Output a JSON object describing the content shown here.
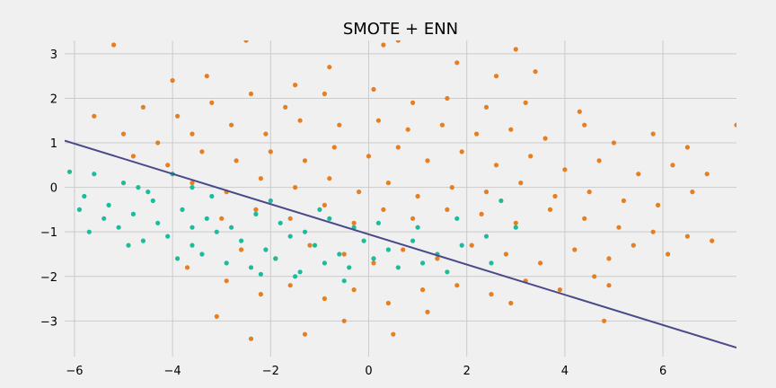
{
  "chart_data": {
    "type": "scatter",
    "title": "SMOTE + ENN",
    "xlabel": "",
    "ylabel": "",
    "xlim": [
      -6.2,
      7.5
    ],
    "ylim": [
      -3.8,
      3.3
    ],
    "x_ticks": [
      -6,
      -4,
      -2,
      0,
      2,
      4,
      6
    ],
    "y_ticks": [
      -3,
      -2,
      -1,
      0,
      1,
      2,
      3
    ],
    "x_tick_labels": [
      "−6",
      "−4",
      "−2",
      "0",
      "2",
      "4",
      "6"
    ],
    "y_tick_labels": [
      "−3",
      "−2",
      "−1",
      "0",
      "1",
      "2",
      "3"
    ],
    "grid": true,
    "legend": "none",
    "background": "#f0f0f0",
    "series": [
      {
        "color": "#e67e22",
        "points": [
          [
            -5.2,
            3.2
          ],
          [
            -3.3,
            2.5
          ],
          [
            -2.5,
            3.3
          ],
          [
            0.3,
            3.2
          ],
          [
            0.6,
            3.3
          ],
          [
            3.0,
            3.1
          ],
          [
            -4.0,
            2.4
          ],
          [
            -1.5,
            2.3
          ],
          [
            -0.8,
            2.7
          ],
          [
            1.8,
            2.8
          ],
          [
            2.6,
            2.5
          ],
          [
            3.4,
            2.6
          ],
          [
            -4.6,
            1.8
          ],
          [
            -3.9,
            1.6
          ],
          [
            -3.2,
            1.9
          ],
          [
            -2.4,
            2.1
          ],
          [
            -1.7,
            1.8
          ],
          [
            -0.9,
            2.1
          ],
          [
            0.1,
            2.2
          ],
          [
            0.9,
            1.9
          ],
          [
            1.6,
            2.0
          ],
          [
            2.4,
            1.8
          ],
          [
            3.2,
            1.9
          ],
          [
            4.3,
            1.7
          ],
          [
            -5.6,
            1.6
          ],
          [
            -5.0,
            1.2
          ],
          [
            -4.3,
            1.0
          ],
          [
            -3.6,
            1.2
          ],
          [
            -2.8,
            1.4
          ],
          [
            -2.1,
            1.2
          ],
          [
            -1.4,
            1.5
          ],
          [
            -0.6,
            1.4
          ],
          [
            0.2,
            1.5
          ],
          [
            0.8,
            1.3
          ],
          [
            1.5,
            1.4
          ],
          [
            2.2,
            1.2
          ],
          [
            2.9,
            1.3
          ],
          [
            3.6,
            1.1
          ],
          [
            4.4,
            1.4
          ],
          [
            5.0,
            1.0
          ],
          [
            5.8,
            1.2
          ],
          [
            6.5,
            0.9
          ],
          [
            -4.8,
            0.7
          ],
          [
            -4.1,
            0.5
          ],
          [
            -3.4,
            0.8
          ],
          [
            -2.7,
            0.6
          ],
          [
            -2.0,
            0.8
          ],
          [
            -1.3,
            0.6
          ],
          [
            -0.7,
            0.9
          ],
          [
            0.0,
            0.7
          ],
          [
            0.6,
            0.9
          ],
          [
            1.2,
            0.6
          ],
          [
            1.9,
            0.8
          ],
          [
            2.6,
            0.5
          ],
          [
            3.3,
            0.7
          ],
          [
            4.0,
            0.4
          ],
          [
            4.7,
            0.6
          ],
          [
            5.5,
            0.3
          ],
          [
            6.2,
            0.5
          ],
          [
            6.9,
            0.3
          ],
          [
            -3.6,
            0.1
          ],
          [
            -2.9,
            -0.1
          ],
          [
            -2.2,
            0.2
          ],
          [
            -1.5,
            0.0
          ],
          [
            -0.8,
            0.2
          ],
          [
            -0.2,
            -0.1
          ],
          [
            0.4,
            0.1
          ],
          [
            1.0,
            -0.2
          ],
          [
            1.7,
            0.0
          ],
          [
            2.4,
            -0.1
          ],
          [
            3.1,
            0.1
          ],
          [
            3.8,
            -0.2
          ],
          [
            4.5,
            -0.1
          ],
          [
            5.2,
            -0.3
          ],
          [
            5.9,
            -0.4
          ],
          [
            6.6,
            -0.1
          ],
          [
            7.5,
            1.4
          ],
          [
            -3.0,
            -0.7
          ],
          [
            -2.3,
            -0.5
          ],
          [
            -1.6,
            -0.7
          ],
          [
            -0.9,
            -0.4
          ],
          [
            -0.3,
            -0.8
          ],
          [
            0.3,
            -0.5
          ],
          [
            0.9,
            -0.7
          ],
          [
            1.6,
            -0.5
          ],
          [
            2.3,
            -0.6
          ],
          [
            3.0,
            -0.8
          ],
          [
            3.7,
            -0.5
          ],
          [
            4.4,
            -0.7
          ],
          [
            5.1,
            -0.9
          ],
          [
            5.8,
            -1.0
          ],
          [
            6.5,
            -1.1
          ],
          [
            7.0,
            -1.2
          ],
          [
            -2.6,
            -1.4
          ],
          [
            -1.9,
            -1.6
          ],
          [
            -1.2,
            -1.3
          ],
          [
            -0.5,
            -1.5
          ],
          [
            0.1,
            -1.7
          ],
          [
            0.7,
            -1.4
          ],
          [
            1.4,
            -1.6
          ],
          [
            2.1,
            -1.3
          ],
          [
            2.8,
            -1.5
          ],
          [
            3.5,
            -1.7
          ],
          [
            4.2,
            -1.4
          ],
          [
            4.9,
            -1.6
          ],
          [
            5.4,
            -1.3
          ],
          [
            6.1,
            -1.5
          ],
          [
            -3.7,
            -1.8
          ],
          [
            -2.9,
            -2.1
          ],
          [
            -2.2,
            -2.4
          ],
          [
            -1.6,
            -2.2
          ],
          [
            -0.9,
            -2.5
          ],
          [
            -0.3,
            -2.3
          ],
          [
            0.4,
            -2.6
          ],
          [
            1.1,
            -2.3
          ],
          [
            1.8,
            -2.2
          ],
          [
            2.5,
            -2.4
          ],
          [
            3.2,
            -2.1
          ],
          [
            3.9,
            -2.3
          ],
          [
            4.6,
            -2.0
          ],
          [
            4.9,
            -2.2
          ],
          [
            -3.1,
            -2.9
          ],
          [
            -2.4,
            -3.4
          ],
          [
            -1.3,
            -3.3
          ],
          [
            -0.5,
            -3.0
          ],
          [
            0.5,
            -3.3
          ],
          [
            1.2,
            -2.8
          ],
          [
            2.9,
            -2.6
          ],
          [
            4.8,
            -3.0
          ]
        ]
      },
      {
        "color": "#1abc9c",
        "points": [
          [
            -6.1,
            0.35
          ],
          [
            -5.6,
            0.3
          ],
          [
            -5.0,
            0.1
          ],
          [
            -4.5,
            -0.1
          ],
          [
            -4.0,
            0.3
          ],
          [
            -3.6,
            0.0
          ],
          [
            -5.8,
            -0.2
          ],
          [
            -5.3,
            -0.4
          ],
          [
            -4.8,
            -0.6
          ],
          [
            -4.3,
            -0.8
          ],
          [
            -3.8,
            -0.5
          ],
          [
            -3.3,
            -0.7
          ],
          [
            -2.8,
            -0.9
          ],
          [
            -2.3,
            -0.6
          ],
          [
            -1.8,
            -0.8
          ],
          [
            -1.3,
            -1.0
          ],
          [
            -0.8,
            -0.7
          ],
          [
            -0.3,
            -0.9
          ],
          [
            -5.7,
            -1.0
          ],
          [
            -5.1,
            -0.9
          ],
          [
            -4.6,
            -1.2
          ],
          [
            -4.1,
            -1.1
          ],
          [
            -3.6,
            -1.3
          ],
          [
            -3.1,
            -1.0
          ],
          [
            -2.6,
            -1.2
          ],
          [
            -2.1,
            -1.4
          ],
          [
            -1.6,
            -1.1
          ],
          [
            -1.1,
            -1.3
          ],
          [
            -0.6,
            -1.5
          ],
          [
            -0.1,
            -1.2
          ],
          [
            0.4,
            -1.4
          ],
          [
            0.9,
            -1.2
          ],
          [
            1.4,
            -1.5
          ],
          [
            1.9,
            -1.3
          ],
          [
            2.4,
            -1.1
          ],
          [
            -3.9,
            -1.6
          ],
          [
            -3.4,
            -1.5
          ],
          [
            -2.9,
            -1.7
          ],
          [
            -2.4,
            -1.8
          ],
          [
            -1.9,
            -1.6
          ],
          [
            -1.4,
            -1.9
          ],
          [
            -0.9,
            -1.7
          ],
          [
            -0.4,
            -1.8
          ],
          [
            0.1,
            -1.6
          ],
          [
            0.6,
            -1.8
          ],
          [
            1.1,
            -1.7
          ],
          [
            1.6,
            -1.9
          ],
          [
            -4.9,
            -1.3
          ],
          [
            -4.4,
            -0.3
          ],
          [
            -3.2,
            -0.2
          ],
          [
            -2.0,
            -0.3
          ],
          [
            -1.0,
            -0.5
          ],
          [
            0.2,
            -0.8
          ],
          [
            1.0,
            -0.9
          ],
          [
            1.8,
            -0.7
          ],
          [
            2.7,
            -0.3
          ],
          [
            3.0,
            -0.9
          ],
          [
            2.5,
            -1.7
          ],
          [
            -0.5,
            -2.1
          ],
          [
            -1.5,
            -2.0
          ],
          [
            -2.2,
            -1.95
          ],
          [
            -3.6,
            -0.9
          ],
          [
            -4.7,
            0.0
          ],
          [
            -5.4,
            -0.7
          ],
          [
            -5.9,
            -0.5
          ]
        ]
      }
    ],
    "decision_line": {
      "color": "#4a4a8a",
      "points": [
        [
          -6.2,
          1.05
        ],
        [
          7.5,
          -3.6
        ]
      ]
    }
  }
}
